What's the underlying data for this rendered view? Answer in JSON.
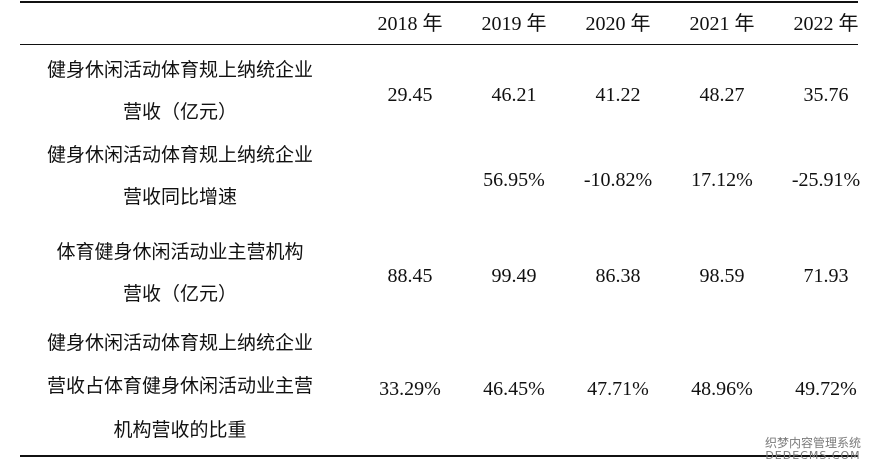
{
  "table": {
    "columns": [
      "2018 年",
      "2019 年",
      "2020 年",
      "2021 年",
      "2022 年"
    ],
    "rows": [
      {
        "label_lines": [
          "健身休闲活动体育规上纳统企业",
          "营收（亿元）"
        ],
        "values": [
          "29.45",
          "46.21",
          "41.22",
          "48.27",
          "35.76"
        ]
      },
      {
        "label_lines": [
          "健身休闲活动体育规上纳统企业",
          "营收同比增速"
        ],
        "values": [
          "",
          "56.95%",
          "-10.82%",
          "17.12%",
          "-25.91%"
        ]
      },
      {
        "label_lines": [
          "体育健身休闲活动业主营机构",
          "营收（亿元）"
        ],
        "values": [
          "88.45",
          "99.49",
          "86.38",
          "98.59",
          "71.93"
        ]
      },
      {
        "label_lines": [
          "健身休闲活动体育规上纳统企业",
          "营收占体育健身休闲活动业主营",
          "机构营收的比重"
        ],
        "values": [
          "33.29%",
          "46.45%",
          "47.71%",
          "48.96%",
          "49.72%"
        ]
      }
    ]
  },
  "watermark": {
    "line1": "织梦内容管理系统",
    "line2": "DEDECMS.COM"
  }
}
